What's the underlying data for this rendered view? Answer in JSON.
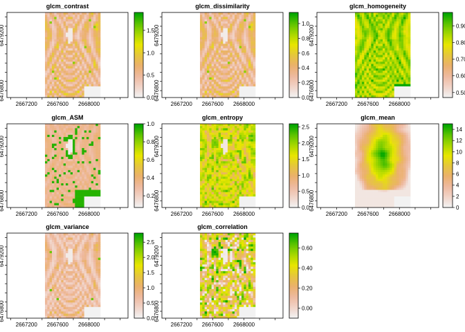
{
  "chart_data": [
    {
      "type": "heatmap",
      "title": "glcm_contrast",
      "x_ticks": [
        2667200,
        2667600,
        2668000
      ],
      "y_ticks": [
        6476800,
        6479200
      ],
      "legend_ticks": [
        "0.0",
        "0.5",
        "1.0",
        "1.5"
      ],
      "value_range": [
        0,
        1.9
      ],
      "pattern": "contrast"
    },
    {
      "type": "heatmap",
      "title": "glcm_dissimilarity",
      "x_ticks": [
        2667200,
        2667600,
        2668000
      ],
      "y_ticks": [
        6476800,
        6479200
      ],
      "legend_ticks": [
        "0.0",
        "0.2",
        "0.4",
        "0.6",
        "0.8",
        "1.0"
      ],
      "value_range": [
        0,
        1.15
      ],
      "pattern": "contrast"
    },
    {
      "type": "heatmap",
      "title": "glcm_homogeneity",
      "x_ticks": [
        2667200,
        2667600,
        2668000
      ],
      "y_ticks": [
        6476800,
        6479200
      ],
      "legend_ticks": [
        "0.50",
        "0.60",
        "0.70",
        "0.80",
        "0.90"
      ],
      "value_range": [
        0.47,
        0.98
      ],
      "pattern": "homogeneity"
    },
    {
      "type": "heatmap",
      "title": "glcm_ASM",
      "x_ticks": [
        2667200,
        2667600,
        2668000
      ],
      "y_ticks": [
        6476800,
        6479200
      ],
      "legend_ticks": [
        "0.2",
        "0.4",
        "0.6",
        "0.8",
        "1.0"
      ],
      "value_range": [
        0.07,
        1.0
      ],
      "pattern": "asm"
    },
    {
      "type": "heatmap",
      "title": "glcm_entropy",
      "x_ticks": [
        2667200,
        2667600,
        2668000
      ],
      "y_ticks": [
        6476800,
        6479200
      ],
      "legend_ticks": [
        "0.0",
        "0.5",
        "1.0",
        "1.5",
        "2.0",
        "2.5"
      ],
      "value_range": [
        0,
        2.6
      ],
      "pattern": "entropy"
    },
    {
      "type": "heatmap",
      "title": "glcm_mean",
      "x_ticks": [
        2667200,
        2667600,
        2668000
      ],
      "y_ticks": [
        6476800,
        6479200
      ],
      "legend_ticks": [
        "0",
        "2",
        "4",
        "6",
        "8",
        "10",
        "12",
        "14"
      ],
      "value_range": [
        0,
        15
      ],
      "pattern": "mean"
    },
    {
      "type": "heatmap",
      "title": "glcm_variance",
      "x_ticks": [
        2667200,
        2667600,
        2668000
      ],
      "y_ticks": [
        6476800,
        6479200
      ],
      "legend_ticks": [
        "0.0",
        "0.5",
        "1.0",
        "1.5",
        "2.0",
        "2.5"
      ],
      "value_range": [
        0,
        2.8
      ],
      "pattern": "variance"
    },
    {
      "type": "heatmap",
      "title": "glcm_correlation",
      "x_ticks": [
        2667200,
        2667600,
        2668000
      ],
      "y_ticks": [
        6476800,
        6479200
      ],
      "legend_ticks": [
        "0.00",
        "0.20",
        "0.40",
        "0.60"
      ],
      "value_range": [
        -0.1,
        0.75
      ],
      "pattern": "correlation"
    }
  ],
  "colors": {
    "ramp": [
      "#f2f2f2",
      "#f1d3c7",
      "#eeb99f",
      "#ebb16c",
      "#e6c63c",
      "#e8e600",
      "#a8d800",
      "#5dc400",
      "#00a600"
    ],
    "na": "#f2f2f2",
    "frame": "#000000"
  }
}
